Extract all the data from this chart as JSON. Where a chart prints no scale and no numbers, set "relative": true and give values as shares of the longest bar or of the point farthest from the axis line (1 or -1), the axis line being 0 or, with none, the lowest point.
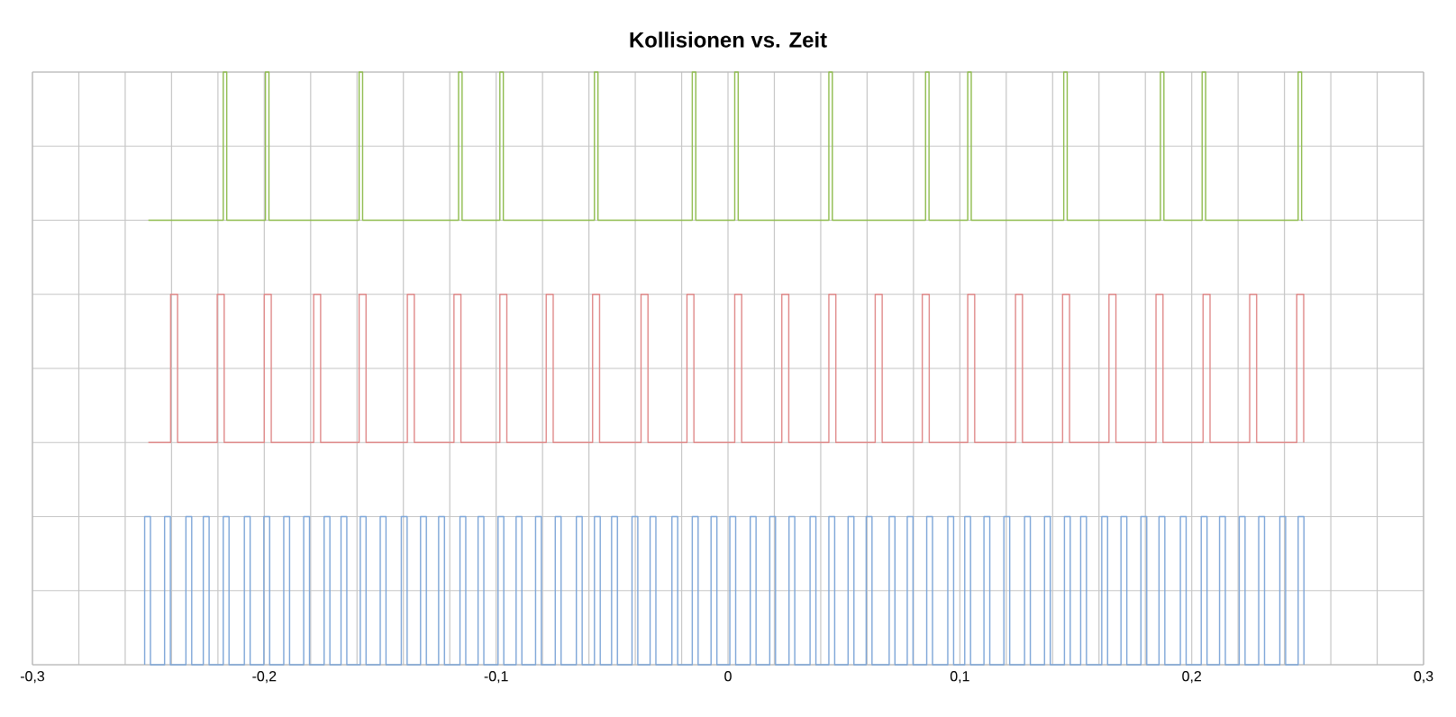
{
  "chart_data": {
    "type": "step",
    "title": "Kollisionen vs. Zeit",
    "relative": true,
    "grid": true,
    "xlim": [
      -0.3,
      0.3
    ],
    "xticks": [
      {
        "value": -0.3,
        "label": "-0,3"
      },
      {
        "value": -0.28,
        "label": null
      },
      {
        "value": -0.26,
        "label": null
      },
      {
        "value": -0.24,
        "label": null
      },
      {
        "value": -0.22,
        "label": null
      },
      {
        "value": -0.2,
        "label": "-0,2"
      },
      {
        "value": -0.18,
        "label": null
      },
      {
        "value": -0.16,
        "label": null
      },
      {
        "value": -0.14,
        "label": null
      },
      {
        "value": -0.12,
        "label": null
      },
      {
        "value": -0.1,
        "label": "-0,1"
      },
      {
        "value": -0.08,
        "label": null
      },
      {
        "value": -0.06,
        "label": null
      },
      {
        "value": -0.04,
        "label": null
      },
      {
        "value": -0.02,
        "label": null
      },
      {
        "value": 0,
        "label": "0"
      },
      {
        "value": 0.02,
        "label": null
      },
      {
        "value": 0.04,
        "label": null
      },
      {
        "value": 0.06,
        "label": null
      },
      {
        "value": 0.08,
        "label": null
      },
      {
        "value": 0.1,
        "label": "0,1"
      },
      {
        "value": 0.12,
        "label": null
      },
      {
        "value": 0.14,
        "label": null
      },
      {
        "value": 0.16,
        "label": null
      },
      {
        "value": 0.18,
        "label": null
      },
      {
        "value": 0.2,
        "label": "0,2"
      },
      {
        "value": 0.22,
        "label": null
      },
      {
        "value": 0.24,
        "label": null
      },
      {
        "value": 0.26,
        "label": null
      },
      {
        "value": 0.28,
        "label": null
      },
      {
        "value": 0.3,
        "label": "0,3"
      }
    ],
    "series": [
      {
        "color": "#7ea6d8",
        "x": [
          -0.2516,
          -0.2516,
          -0.2491,
          -0.243,
          -0.2405,
          -0.2338,
          -0.2313,
          -0.2263,
          -0.2238,
          -0.2177,
          -0.2152,
          -0.2086,
          -0.2061,
          -0.2002,
          -0.1977,
          -0.1916,
          -0.1891,
          -0.183,
          -0.1805,
          -0.1742,
          -0.1717,
          -0.1669,
          -0.1644,
          -0.1586,
          -0.1561,
          -0.15,
          -0.1475,
          -0.1409,
          -0.1384,
          -0.1326,
          -0.1301,
          -0.1248,
          -0.1223,
          -0.1156,
          -0.1131,
          -0.1078,
          -0.1053,
          -0.0992,
          -0.0967,
          -0.0914,
          -0.0889,
          -0.083,
          -0.0805,
          -0.0745,
          -0.072,
          -0.0654,
          -0.0629,
          -0.0576,
          -0.0551,
          -0.0502,
          -0.0477,
          -0.0414,
          -0.0389,
          -0.0336,
          -0.0311,
          -0.0242,
          -0.0217,
          -0.0154,
          -0.0129,
          -0.0073,
          -0.0048,
          0.0008,
          0.0033,
          0.0096,
          0.0121,
          0.018,
          0.0205,
          0.0263,
          0.0288,
          0.0354,
          0.0379,
          0.0435,
          0.046,
          0.0518,
          0.0543,
          0.0596,
          0.0621,
          0.0695,
          0.072,
          0.0773,
          0.0798,
          0.0857,
          0.0882,
          0.0948,
          0.0973,
          0.1021,
          0.1046,
          0.1104,
          0.1129,
          0.119,
          0.1215,
          0.1279,
          0.1304,
          0.1365,
          0.139,
          0.1451,
          0.1476,
          0.1521,
          0.1546,
          0.1612,
          0.1637,
          0.1695,
          0.172,
          0.1781,
          0.1806,
          0.1859,
          0.1884,
          0.1951,
          0.1976,
          0.2041,
          0.2066,
          0.212,
          0.2145,
          0.2205,
          0.223,
          0.2289,
          0.2314,
          0.238,
          0.2405,
          0.2459,
          0.2484
        ],
        "values": [
          0,
          0.25,
          0,
          0.25,
          0,
          0.25,
          0,
          0.25,
          0,
          0.25,
          0,
          0.25,
          0,
          0.25,
          0,
          0.25,
          0,
          0.25,
          0,
          0.25,
          0,
          0.25,
          0,
          0.25,
          0,
          0.25,
          0,
          0.25,
          0,
          0.25,
          0,
          0.25,
          0,
          0.25,
          0,
          0.25,
          0,
          0.25,
          0,
          0.25,
          0,
          0.25,
          0,
          0.25,
          0,
          0.25,
          0,
          0.25,
          0,
          0.25,
          0,
          0.25,
          0,
          0.25,
          0,
          0.25,
          0,
          0.25,
          0,
          0.25,
          0,
          0.25,
          0,
          0.25,
          0,
          0.25,
          0,
          0.25,
          0,
          0.25,
          0,
          0.25,
          0,
          0.25,
          0,
          0.25,
          0,
          0.25,
          0,
          0.25,
          0,
          0.25,
          0,
          0.25,
          0,
          0.25,
          0,
          0.25,
          0,
          0.25,
          0,
          0.25,
          0,
          0.25,
          0,
          0.25,
          0,
          0.25,
          0,
          0.25,
          0,
          0.25,
          0,
          0.25,
          0,
          0.25,
          0,
          0.25,
          0,
          0.25,
          0,
          0.25,
          0,
          0.25,
          0,
          0.25,
          0,
          0.25,
          0,
          0.25,
          0
        ]
      },
      {
        "color": "#e08a8a",
        "x": [
          -0.25,
          -0.2404,
          -0.2374,
          -0.2203,
          -0.2173,
          -0.2,
          -0.197,
          -0.1787,
          -0.1757,
          -0.1591,
          -0.1561,
          -0.1383,
          -0.1353,
          -0.1182,
          -0.1152,
          -0.0984,
          -0.0954,
          -0.0784,
          -0.0754,
          -0.0584,
          -0.0554,
          -0.0375,
          -0.0345,
          -0.0177,
          -0.0147,
          0.0029,
          0.0059,
          0.0232,
          0.0262,
          0.0435,
          0.0465,
          0.0635,
          0.0665,
          0.0838,
          0.0868,
          0.1034,
          0.1064,
          0.124,
          0.127,
          0.1443,
          0.1473,
          0.1643,
          0.1673,
          0.1846,
          0.1876,
          0.2049,
          0.2079,
          0.225,
          0.228,
          0.2453,
          0.2483
        ],
        "values": [
          0.375,
          0.625,
          0.375,
          0.625,
          0.375,
          0.625,
          0.375,
          0.625,
          0.375,
          0.625,
          0.375,
          0.625,
          0.375,
          0.625,
          0.375,
          0.625,
          0.375,
          0.625,
          0.375,
          0.625,
          0.375,
          0.625,
          0.375,
          0.625,
          0.375,
          0.625,
          0.375,
          0.625,
          0.375,
          0.625,
          0.375,
          0.625,
          0.375,
          0.625,
          0.375,
          0.625,
          0.375,
          0.625,
          0.375,
          0.625,
          0.375,
          0.625,
          0.375,
          0.625,
          0.375,
          0.625,
          0.375,
          0.625,
          0.375,
          0.625,
          0.375
        ]
      },
      {
        "color": "#8fbc4e",
        "x": [
          -0.25,
          -0.2177,
          -0.2162,
          -0.1995,
          -0.198,
          -0.1591,
          -0.1576,
          -0.1162,
          -0.1147,
          -0.0984,
          -0.0969,
          -0.0576,
          -0.0561,
          -0.0154,
          -0.0139,
          0.0029,
          0.0044,
          0.0435,
          0.045,
          0.0852,
          0.0867,
          0.1034,
          0.1049,
          0.1448,
          0.1463,
          0.1865,
          0.188,
          0.2045,
          0.206,
          0.2459,
          0.2474,
          0.248
        ],
        "values": [
          0.75,
          1,
          0.75,
          1,
          0.75,
          1,
          0.75,
          1,
          0.75,
          1,
          0.75,
          1,
          0.75,
          1,
          0.75,
          1,
          0.75,
          1,
          0.75,
          1,
          0.75,
          1,
          0.75,
          1,
          0.75,
          1,
          0.75,
          1,
          0.75,
          1,
          0.75,
          0.75
        ]
      }
    ]
  }
}
